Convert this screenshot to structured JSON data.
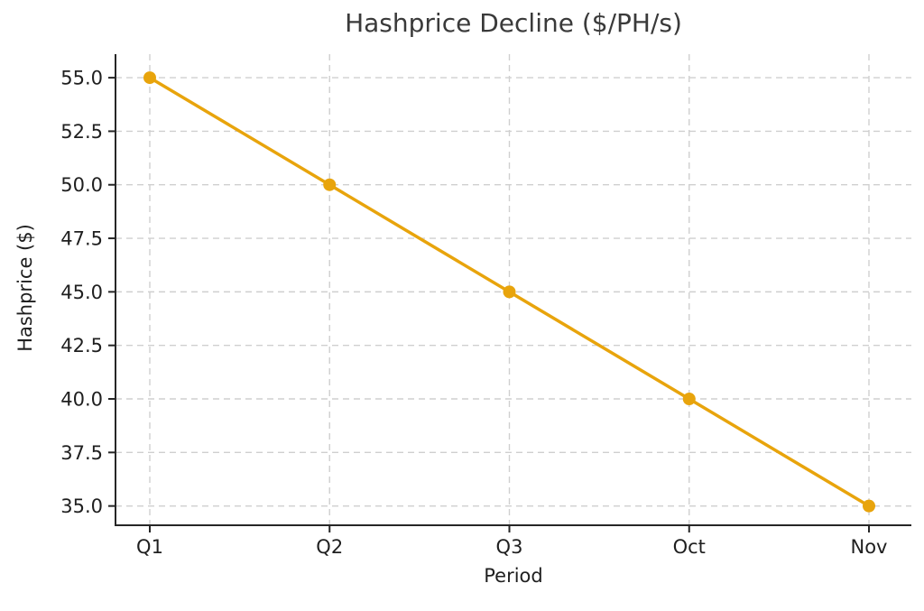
{
  "chart_data": {
    "type": "line",
    "title": "Hashprice Decline ($/PH/s)",
    "xlabel": "Period",
    "ylabel": "Hashprice ($)",
    "categories": [
      "Q1",
      "Q2",
      "Q3",
      "Oct",
      "Nov"
    ],
    "series": [
      {
        "name": "Hashprice",
        "values": [
          55,
          50,
          45,
          40,
          35
        ]
      }
    ],
    "yticks": [
      35.0,
      37.5,
      40.0,
      42.5,
      45.0,
      47.5,
      50.0,
      52.5,
      55.0
    ],
    "ytick_decimals": 1,
    "ylim": [
      34.1,
      56.1
    ],
    "grid": true,
    "grid_style": "dashed",
    "legend": "none",
    "marker": "circle",
    "colors": {
      "line": "#E8A40C",
      "grid": "#CFCFCF",
      "spine": "#262626",
      "tick_text": "#1F1F1F",
      "title_text": "#3A3A3A",
      "background": "#FFFFFF"
    }
  }
}
